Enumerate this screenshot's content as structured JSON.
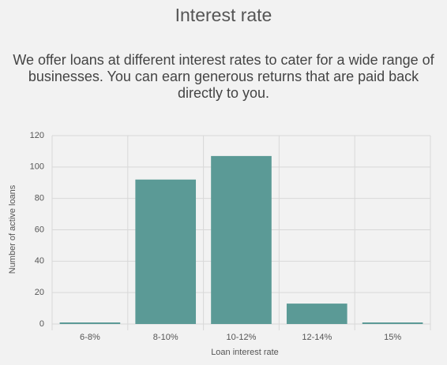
{
  "chart_data": {
    "type": "bar",
    "title": "Interest rate",
    "subtitle": "We offer loans at different interest rates to cater for a wide range of businesses. You can earn generous returns that are paid back directly to you.",
    "x_label": "Loan interest rate",
    "y_label": "Number of active loans",
    "categories": [
      "6-8%",
      "8-10%",
      "10-12%",
      "12-14%",
      "15%"
    ],
    "values": [
      1,
      92,
      107,
      13,
      1
    ],
    "color": "#5b9a96",
    "ylim": [
      0,
      120
    ],
    "yticks": [
      0,
      20,
      40,
      60,
      80,
      100,
      120
    ],
    "grid": true
  }
}
